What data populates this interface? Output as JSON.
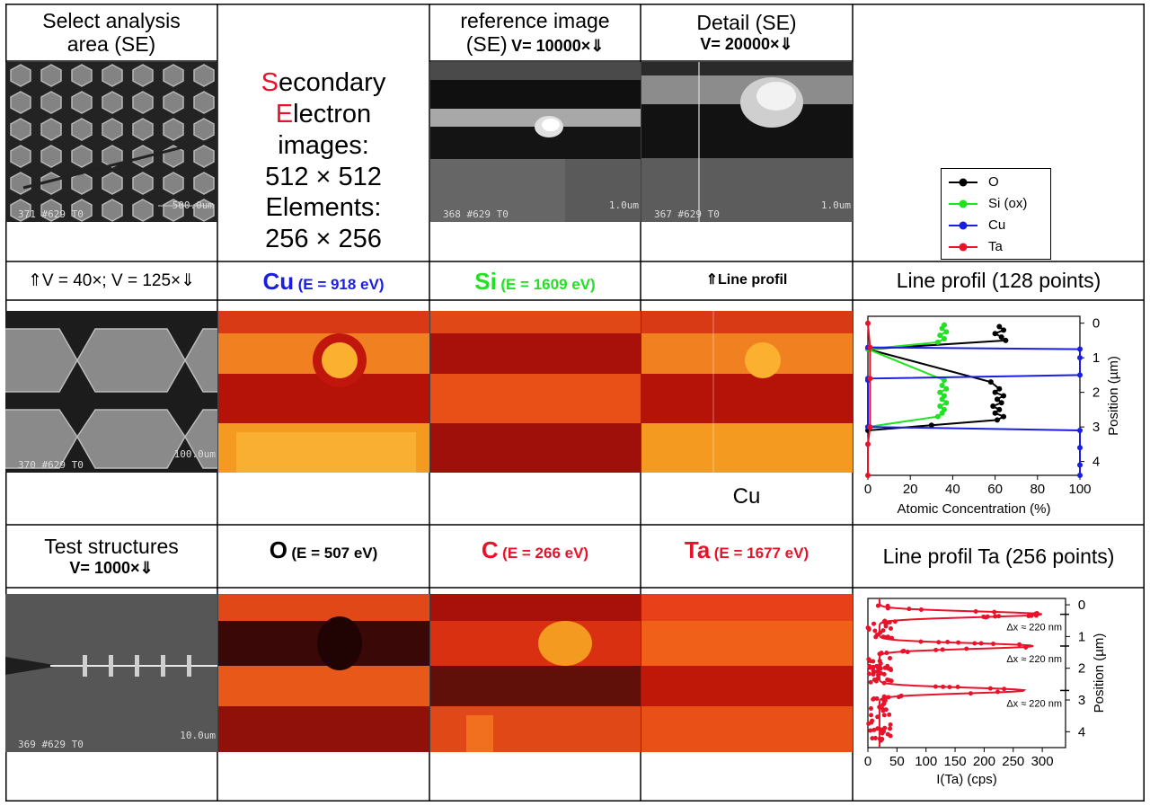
{
  "row1": {
    "select_area_l1": "Select analysis",
    "select_area_l2": "area (SE)",
    "secondary_desc": {
      "s_letter": "S",
      "s_rest": "econdary",
      "e_letter": "E",
      "e_rest": "lectron",
      "images": "images:",
      "res1": "512 × 512",
      "elements": "Elements:",
      "res2": "256 × 256"
    },
    "reference_l1": "reference image",
    "reference_l2a": "(SE)",
    "reference_l2b": "V= 10000×⇓",
    "detail_l1": "Detail (SE)",
    "detail_l2": "V= 20000×⇓",
    "sem1_label": "371  #629 T0",
    "sem1_scale": "500.0um",
    "sem2_label": "368  #629 T0",
    "sem2_scale": "1.0um",
    "sem3_label": "367  #629 T0",
    "sem3_scale": "1.0um",
    "legend": [
      {
        "name": "O",
        "color": "#000000"
      },
      {
        "name": "Si (ox)",
        "color": "#22e023"
      },
      {
        "name": "Cu",
        "color": "#1a1ee0"
      },
      {
        "name": "Ta",
        "color": "#e8122a"
      }
    ]
  },
  "row2": {
    "mag": "⇑V = 40×; V = 125×⇓",
    "cu_sym": "Cu",
    "cu_e": "(E = 918 eV)",
    "si_sym": "Si",
    "si_e": "(E = 1609 eV)",
    "lineprof_arrow": "⇑Line profil",
    "lineprof_title": "Line profil (128 points)",
    "cu_caption": "Cu",
    "sem_label": "370  #629 T0",
    "sem_scale": "100.0um"
  },
  "row3": {
    "test_l1": "Test structures",
    "test_l2": "V= 1000×⇓",
    "o_sym": "O",
    "o_e": "(E = 507 eV)",
    "c_sym": "C",
    "c_e": "(E = 266 eV)",
    "ta_sym": "Ta",
    "ta_e": "(E = 1677 eV)",
    "ta_prof_title": "Line profil Ta (256 points)",
    "sem_label": "369  #629 T0",
    "sem_scale": "10.0um"
  },
  "chart_data": [
    {
      "type": "scatter",
      "title": "Line profil (128 points)",
      "xlabel": "Atomic Concentration (%)",
      "ylabel": "Position (µm)",
      "xlim": [
        0,
        100
      ],
      "ylim": [
        4.4,
        -0.2
      ],
      "xticks": [
        "0",
        "20",
        "40",
        "60",
        "80",
        "100"
      ],
      "yticks": [
        "0",
        "1",
        "2",
        "3",
        "4"
      ],
      "legend_position": "above-right",
      "series": [
        {
          "name": "O",
          "color": "#000000",
          "points": [
            [
              62,
              0.1
            ],
            [
              64,
              0.2
            ],
            [
              60,
              0.3
            ],
            [
              63,
              0.4
            ],
            [
              65,
              0.5
            ],
            [
              0,
              0.75
            ],
            [
              58,
              1.7
            ],
            [
              62,
              1.9
            ],
            [
              60,
              2.0
            ],
            [
              64,
              2.1
            ],
            [
              61,
              2.2
            ],
            [
              63,
              2.3
            ],
            [
              59,
              2.4
            ],
            [
              62,
              2.5
            ],
            [
              60,
              2.6
            ],
            [
              64,
              2.7
            ],
            [
              61,
              2.8
            ],
            [
              30,
              2.95
            ],
            [
              0,
              3.1
            ]
          ]
        },
        {
          "name": "Si (ox)",
          "color": "#22e023",
          "points": [
            [
              36,
              0.05
            ],
            [
              35,
              0.15
            ],
            [
              37,
              0.25
            ],
            [
              34,
              0.35
            ],
            [
              36,
              0.45
            ],
            [
              33,
              0.55
            ],
            [
              0,
              0.75
            ],
            [
              36,
              1.65
            ],
            [
              35,
              1.8
            ],
            [
              37,
              1.9
            ],
            [
              34,
              2.0
            ],
            [
              36,
              2.1
            ],
            [
              35,
              2.2
            ],
            [
              37,
              2.3
            ],
            [
              34,
              2.4
            ],
            [
              36,
              2.5
            ],
            [
              35,
              2.6
            ],
            [
              33,
              2.7
            ],
            [
              0,
              3.0
            ]
          ]
        },
        {
          "name": "Cu",
          "color": "#1a1ee0",
          "points": [
            [
              0,
              0.7
            ],
            [
              100,
              0.75
            ],
            [
              100,
              1.0
            ],
            [
              100,
              1.5
            ],
            [
              0,
              1.6
            ],
            [
              0,
              1.65
            ],
            [
              0,
              3.0
            ],
            [
              100,
              3.1
            ],
            [
              100,
              3.6
            ],
            [
              100,
              4.1
            ],
            [
              100,
              4.4
            ]
          ]
        },
        {
          "name": "Ta",
          "color": "#e8122a",
          "points": [
            [
              0,
              0
            ],
            [
              1,
              0.7
            ],
            [
              1,
              1.6
            ],
            [
              1,
              3.0
            ],
            [
              0,
              3.5
            ],
            [
              0,
              4.4
            ]
          ]
        }
      ]
    },
    {
      "type": "line",
      "title": "Line profil Ta (256 points)",
      "xlabel": "I(Ta) (cps)",
      "ylabel": "Position (µm)",
      "xlim": [
        0,
        340
      ],
      "ylim": [
        4.5,
        -0.2
      ],
      "xticks": [
        "0",
        "50",
        "100",
        "150",
        "200",
        "250",
        "300"
      ],
      "yticks": [
        "0",
        "1",
        "2",
        "3",
        "4"
      ],
      "annotations": [
        "Δx ≈ 220 nm",
        "Δx ≈ 220 nm",
        "Δx ≈ 220 nm"
      ],
      "series": [
        {
          "name": "Ta",
          "color": "#e8122a",
          "peaks_um": [
            0.3,
            1.3,
            2.7
          ],
          "peak_heights_cps": [
            300,
            285,
            270
          ],
          "baseline_cps": 20
        }
      ]
    }
  ]
}
